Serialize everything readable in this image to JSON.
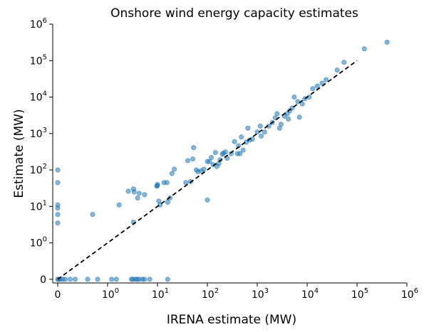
{
  "chart_data": {
    "type": "scatter",
    "title": "Onshore wind energy capacity estimates",
    "xlabel": "IRENA estimate (MW)",
    "ylabel": "Estimate (MW)",
    "xscale": "symlog",
    "yscale": "symlog",
    "xlim": [
      -0.1,
      1000000
    ],
    "ylim": [
      -0.1,
      1000000
    ],
    "x_ticks": [
      {
        "value": 0,
        "base": "0",
        "exp": ""
      },
      {
        "value": 1,
        "base": "10",
        "exp": "0"
      },
      {
        "value": 10,
        "base": "10",
        "exp": "1"
      },
      {
        "value": 100,
        "base": "10",
        "exp": "2"
      },
      {
        "value": 1000,
        "base": "10",
        "exp": "3"
      },
      {
        "value": 10000,
        "base": "10",
        "exp": "4"
      },
      {
        "value": 100000,
        "base": "10",
        "exp": "5"
      },
      {
        "value": 1000000,
        "base": "10",
        "exp": "6"
      }
    ],
    "y_ticks": [
      {
        "value": 0,
        "base": "0",
        "exp": ""
      },
      {
        "value": 1,
        "base": "10",
        "exp": "0"
      },
      {
        "value": 10,
        "base": "10",
        "exp": "1"
      },
      {
        "value": 100,
        "base": "10",
        "exp": "2"
      },
      {
        "value": 1000,
        "base": "10",
        "exp": "3"
      },
      {
        "value": 10000,
        "base": "10",
        "exp": "4"
      },
      {
        "value": 100000,
        "base": "10",
        "exp": "5"
      },
      {
        "value": 1000000,
        "base": "10",
        "exp": "6"
      }
    ],
    "grid": false,
    "marker_color": "#1f77b4",
    "marker_alpha": 0.55,
    "reference_line": {
      "style": "dashed",
      "color": "#000000",
      "from": 0,
      "to": 100000
    },
    "points": [
      [
        0,
        100
      ],
      [
        0,
        45
      ],
      [
        0,
        11
      ],
      [
        0,
        9
      ],
      [
        0,
        6
      ],
      [
        0,
        3.5
      ],
      [
        0,
        0
      ],
      [
        0.02,
        0
      ],
      [
        0.05,
        0
      ],
      [
        0.1,
        0
      ],
      [
        0.15,
        0
      ],
      [
        0.25,
        0
      ],
      [
        0.35,
        0
      ],
      [
        0.6,
        0
      ],
      [
        0.8,
        0
      ],
      [
        1.2,
        0
      ],
      [
        1.5,
        0
      ],
      [
        3,
        0
      ],
      [
        3.2,
        0
      ],
      [
        3.6,
        0
      ],
      [
        3.9,
        0
      ],
      [
        4.3,
        0
      ],
      [
        5,
        0
      ],
      [
        5.5,
        0
      ],
      [
        7,
        0
      ],
      [
        16,
        0
      ],
      [
        0.7,
        6
      ],
      [
        1.7,
        11
      ],
      [
        2.6,
        26
      ],
      [
        3.3,
        30
      ],
      [
        3.4,
        25
      ],
      [
        4,
        17
      ],
      [
        4.3,
        23
      ],
      [
        5.5,
        21
      ],
      [
        3.3,
        3.7
      ],
      [
        9.7,
        36
      ],
      [
        9.9,
        37
      ],
      [
        10,
        40
      ],
      [
        10.6,
        14
      ],
      [
        11.3,
        11
      ],
      [
        13.5,
        45
      ],
      [
        15.5,
        45
      ],
      [
        16,
        13
      ],
      [
        17.8,
        17
      ],
      [
        19.5,
        80
      ],
      [
        21.7,
        105
      ],
      [
        37,
        45
      ],
      [
        40.5,
        180
      ],
      [
        46,
        48
      ],
      [
        51,
        200
      ],
      [
        53,
        410
      ],
      [
        60,
        100
      ],
      [
        65,
        90
      ],
      [
        75,
        95
      ],
      [
        85,
        105
      ],
      [
        100,
        15
      ],
      [
        100,
        170
      ],
      [
        110,
        170
      ],
      [
        120,
        220
      ],
      [
        130,
        140
      ],
      [
        145,
        300
      ],
      [
        155,
        125
      ],
      [
        170,
        150
      ],
      [
        180,
        190
      ],
      [
        200,
        270
      ],
      [
        210,
        290
      ],
      [
        230,
        310
      ],
      [
        250,
        210
      ],
      [
        300,
        280
      ],
      [
        350,
        600
      ],
      [
        400,
        280
      ],
      [
        420,
        460
      ],
      [
        450,
        280
      ],
      [
        480,
        800
      ],
      [
        520,
        350
      ],
      [
        600,
        580
      ],
      [
        650,
        1400
      ],
      [
        700,
        660
      ],
      [
        800,
        700
      ],
      [
        1000,
        1100
      ],
      [
        1150,
        1600
      ],
      [
        1200,
        850
      ],
      [
        1400,
        1100
      ],
      [
        1700,
        1600
      ],
      [
        2000,
        2000
      ],
      [
        2300,
        2700
      ],
      [
        2500,
        3500
      ],
      [
        2800,
        1400
      ],
      [
        3000,
        1800
      ],
      [
        3500,
        3000
      ],
      [
        4000,
        3500
      ],
      [
        4200,
        2500
      ],
      [
        4500,
        4200
      ],
      [
        5000,
        5000
      ],
      [
        5500,
        10000
      ],
      [
        6500,
        7500
      ],
      [
        7000,
        2800
      ],
      [
        8000,
        6500
      ],
      [
        9000,
        9000
      ],
      [
        11000,
        10000
      ],
      [
        13000,
        17000
      ],
      [
        16000,
        20000
      ],
      [
        20000,
        24000
      ],
      [
        24000,
        30000
      ],
      [
        40000,
        55000
      ],
      [
        55000,
        90000
      ],
      [
        140000,
        210000
      ],
      [
        400000,
        320000
      ]
    ]
  }
}
